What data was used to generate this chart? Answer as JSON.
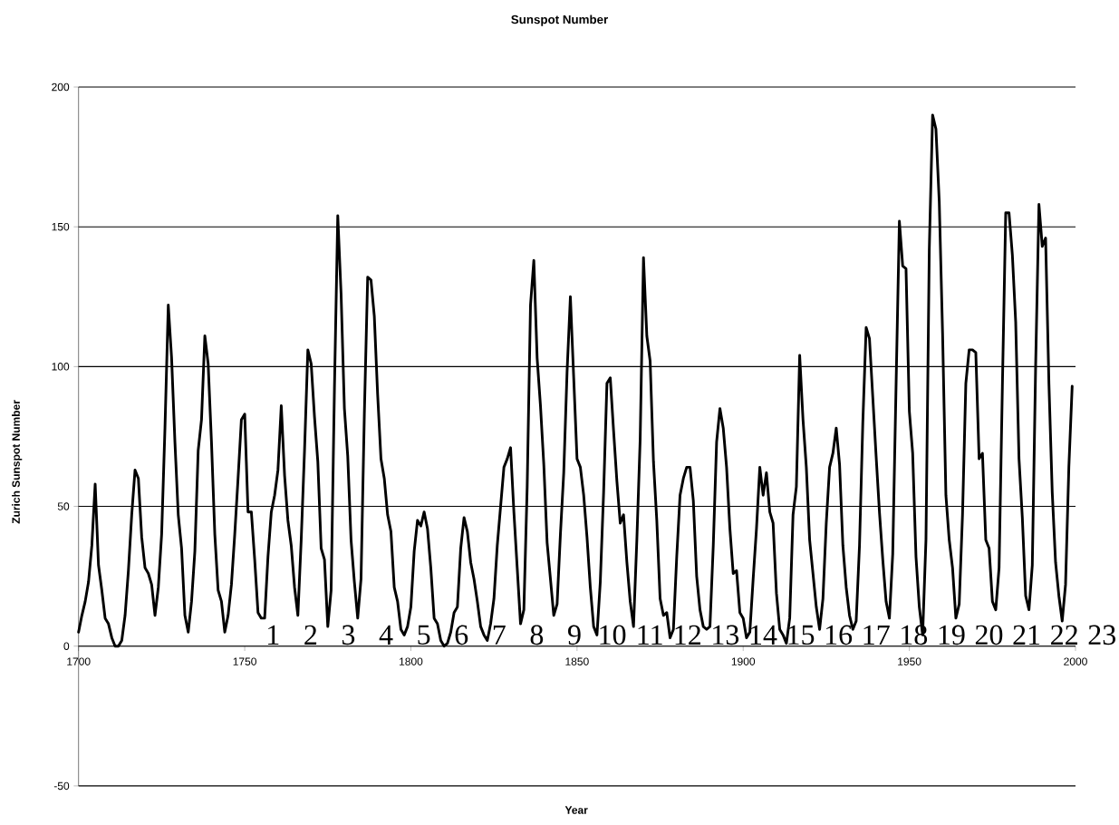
{
  "chart_data": {
    "type": "line",
    "title": "Sunspot Number",
    "xlabel": "Year",
    "ylabel": "Zurich Sunspot Number",
    "x": [
      1700,
      1701,
      1702,
      1703,
      1704,
      1705,
      1706,
      1707,
      1708,
      1709,
      1710,
      1711,
      1712,
      1713,
      1714,
      1715,
      1716,
      1717,
      1718,
      1719,
      1720,
      1721,
      1722,
      1723,
      1724,
      1725,
      1726,
      1727,
      1728,
      1729,
      1730,
      1731,
      1732,
      1733,
      1734,
      1735,
      1736,
      1737,
      1738,
      1739,
      1740,
      1741,
      1742,
      1743,
      1744,
      1745,
      1746,
      1747,
      1748,
      1749,
      1750,
      1751,
      1752,
      1753,
      1754,
      1755,
      1756,
      1757,
      1758,
      1759,
      1760,
      1761,
      1762,
      1763,
      1764,
      1765,
      1766,
      1767,
      1768,
      1769,
      1770,
      1771,
      1772,
      1773,
      1774,
      1775,
      1776,
      1777,
      1778,
      1779,
      1780,
      1781,
      1782,
      1783,
      1784,
      1785,
      1786,
      1787,
      1788,
      1789,
      1790,
      1791,
      1792,
      1793,
      1794,
      1795,
      1796,
      1797,
      1798,
      1799,
      1800,
      1801,
      1802,
      1803,
      1804,
      1805,
      1806,
      1807,
      1808,
      1809,
      1810,
      1811,
      1812,
      1813,
      1814,
      1815,
      1816,
      1817,
      1818,
      1819,
      1820,
      1821,
      1822,
      1823,
      1824,
      1825,
      1826,
      1827,
      1828,
      1829,
      1830,
      1831,
      1832,
      1833,
      1834,
      1835,
      1836,
      1837,
      1838,
      1839,
      1840,
      1841,
      1842,
      1843,
      1844,
      1845,
      1846,
      1847,
      1848,
      1849,
      1850,
      1851,
      1852,
      1853,
      1854,
      1855,
      1856,
      1857,
      1858,
      1859,
      1860,
      1861,
      1862,
      1863,
      1864,
      1865,
      1866,
      1867,
      1868,
      1869,
      1870,
      1871,
      1872,
      1873,
      1874,
      1875,
      1876,
      1877,
      1878,
      1879,
      1880,
      1881,
      1882,
      1883,
      1884,
      1885,
      1886,
      1887,
      1888,
      1889,
      1890,
      1891,
      1892,
      1893,
      1894,
      1895,
      1896,
      1897,
      1898,
      1899,
      1900,
      1901,
      1902,
      1903,
      1904,
      1905,
      1906,
      1907,
      1908,
      1909,
      1910,
      1911,
      1912,
      1913,
      1914,
      1915,
      1916,
      1917,
      1918,
      1919,
      1920,
      1921,
      1922,
      1923,
      1924,
      1925,
      1926,
      1927,
      1928,
      1929,
      1930,
      1931,
      1932,
      1933,
      1934,
      1935,
      1936,
      1937,
      1938,
      1939,
      1940,
      1941,
      1942,
      1943,
      1944,
      1945,
      1946,
      1947,
      1948,
      1949,
      1950,
      1951,
      1952,
      1953,
      1954,
      1955,
      1956,
      1957,
      1958,
      1959,
      1960,
      1961,
      1962,
      1963,
      1964,
      1965,
      1966,
      1967,
      1968,
      1969,
      1970,
      1971,
      1972,
      1973,
      1974,
      1975,
      1976,
      1977,
      1978,
      1979,
      1980,
      1981,
      1982,
      1983,
      1984,
      1985,
      1986,
      1987,
      1988,
      1989,
      1990,
      1991,
      1992,
      1993,
      1994,
      1995,
      1996,
      1997,
      1998,
      1999
    ],
    "series": [
      {
        "color": "#000000",
        "values": [
          5,
          11,
          16,
          23,
          36,
          58,
          29,
          20,
          10,
          8,
          3,
          0,
          0,
          2,
          11,
          27,
          47,
          63,
          60,
          39,
          28,
          26,
          22,
          11,
          21,
          40,
          78,
          122,
          103,
          73,
          47,
          35,
          11,
          5,
          16,
          34,
          70,
          81,
          111,
          101,
          73,
          40,
          20,
          16,
          5,
          11,
          22,
          40,
          60,
          81,
          83,
          48,
          48,
          31,
          12,
          10,
          10,
          32,
          48,
          54,
          63,
          86,
          61,
          45,
          36,
          21,
          11,
          38,
          70,
          106,
          101,
          82,
          66,
          35,
          31,
          7,
          20,
          92,
          154,
          126,
          85,
          68,
          38,
          23,
          10,
          24,
          83,
          132,
          131,
          118,
          90,
          67,
          60,
          47,
          41,
          21,
          16,
          6,
          4,
          7,
          14,
          34,
          45,
          43,
          48,
          42,
          28,
          10,
          8,
          2,
          0,
          1,
          5,
          12,
          14,
          35,
          46,
          41,
          30,
          24,
          16,
          7,
          4,
          2,
          8,
          17,
          36,
          50,
          64,
          67,
          71,
          48,
          28,
          8,
          13,
          57,
          122,
          138,
          103,
          86,
          65,
          37,
          24,
          11,
          15,
          40,
          62,
          98,
          125,
          96,
          67,
          64,
          54,
          39,
          21,
          7,
          4,
          23,
          55,
          94,
          96,
          77,
          59,
          44,
          47,
          30,
          16,
          7,
          38,
          74,
          139,
          111,
          102,
          66,
          45,
          17,
          11,
          12,
          3,
          6,
          32,
          54,
          60,
          64,
          64,
          52,
          25,
          13,
          7,
          6,
          7,
          36,
          73,
          85,
          78,
          64,
          42,
          26,
          27,
          12,
          10,
          3,
          5,
          24,
          42,
          64,
          54,
          62,
          48,
          44,
          19,
          6,
          4,
          1,
          10,
          47,
          57,
          104,
          81,
          64,
          38,
          26,
          14,
          6,
          17,
          44,
          64,
          69,
          78,
          65,
          36,
          21,
          11,
          6,
          9,
          36,
          80,
          114,
          110,
          89,
          68,
          48,
          31,
          16,
          10,
          33,
          93,
          152,
          136,
          135,
          84,
          69,
          32,
          14,
          4,
          38,
          142,
          190,
          185,
          159,
          112,
          54,
          38,
          28,
          10,
          15,
          47,
          94,
          106,
          106,
          105,
          67,
          69,
          38,
          35,
          16,
          13,
          28,
          93,
          155,
          155,
          140,
          116,
          67,
          46,
          18,
          13,
          29,
          100,
          158,
          143,
          146,
          94,
          55,
          30,
          18,
          9,
          22,
          64,
          93
        ]
      }
    ],
    "xlim": [
      1700,
      2000
    ],
    "xticks": [
      1700,
      1750,
      1800,
      1850,
      1900,
      1950,
      2000
    ],
    "ylim": [
      -50,
      200
    ],
    "yticks": [
      -50,
      0,
      50,
      100,
      150,
      200
    ],
    "grid": "y",
    "marker": "none",
    "line_style": "solid",
    "annotations": [
      "1",
      "2",
      "3",
      "4",
      "5",
      "6",
      "7",
      "8",
      "9",
      "10",
      "11",
      "12",
      "13",
      "14",
      "15",
      "16",
      "17",
      "18",
      "19",
      "20",
      "21",
      "22",
      "23"
    ]
  }
}
